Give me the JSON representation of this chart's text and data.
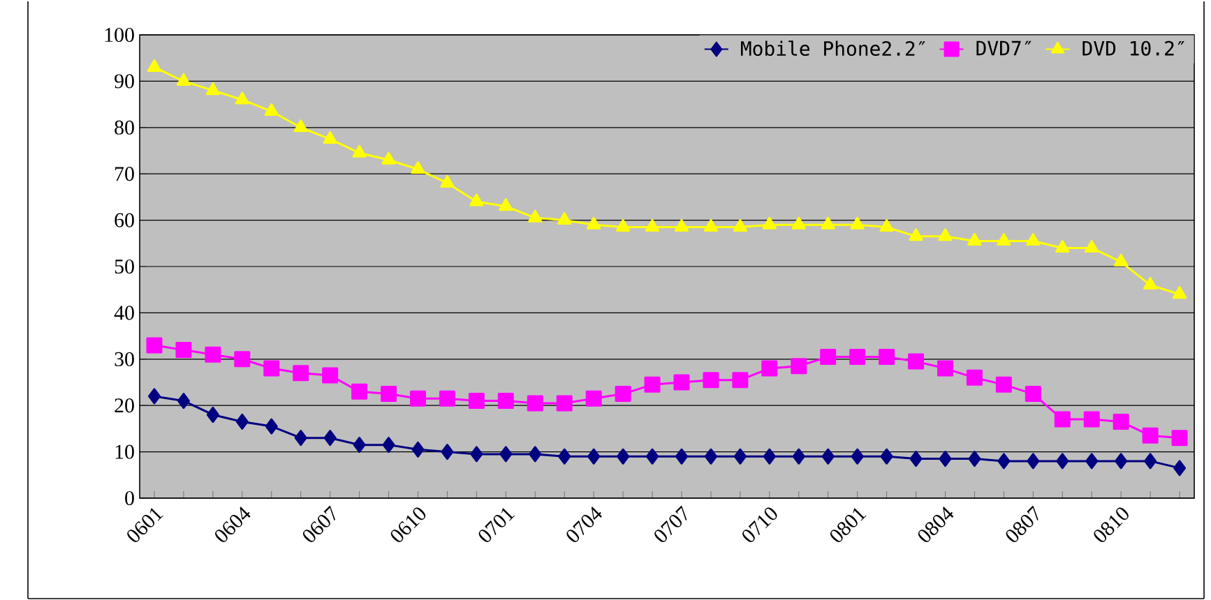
{
  "chart_data": {
    "type": "line",
    "categories": [
      "0601",
      null,
      null,
      "0604",
      null,
      null,
      "0607",
      null,
      null,
      "0610",
      null,
      null,
      "0701",
      null,
      null,
      "0704",
      null,
      null,
      "0707",
      null,
      null,
      "0710",
      null,
      null,
      "0801",
      null,
      null,
      "0804",
      null,
      null,
      "0807",
      null,
      null,
      "0810",
      null,
      null
    ],
    "series": [
      {
        "name": "Mobile Phone2.2″",
        "color": "#000080",
        "marker": "diamond",
        "values": [
          22,
          21,
          18,
          16.5,
          15.5,
          13,
          13,
          11.5,
          11.5,
          10.5,
          10,
          9.5,
          9.5,
          9.5,
          9,
          9,
          9,
          9,
          9,
          9,
          9,
          9,
          9,
          9,
          9,
          9,
          8.5,
          8.5,
          8.5,
          8,
          8,
          8,
          8,
          8,
          8,
          6.5
        ]
      },
      {
        "name": "DVD7″",
        "color": "#ff00ff",
        "marker": "square",
        "values": [
          33,
          32,
          31,
          30,
          28,
          27,
          26.5,
          23,
          22.5,
          21.5,
          21.5,
          21,
          21,
          20.5,
          20.5,
          21.5,
          22.5,
          24.5,
          25,
          25.5,
          25.5,
          28,
          28.5,
          30.5,
          30.5,
          30.5,
          29.5,
          28,
          26,
          24.5,
          22.5,
          17,
          17,
          16.5,
          13.5,
          13
        ]
      },
      {
        "name": "DVD 10.2″",
        "color": "#ffff00",
        "marker": "triangle",
        "values": [
          93,
          90,
          88,
          86,
          83.5,
          80,
          77.5,
          74.5,
          73,
          71,
          68,
          64,
          63,
          60.5,
          60,
          59,
          58.5,
          58.5,
          58.5,
          58.5,
          58.5,
          59,
          59,
          59,
          59,
          58.5,
          56.5,
          56.5,
          55.5,
          55.5,
          55.5,
          54,
          54,
          51,
          46,
          44
        ]
      }
    ],
    "ylim": [
      0,
      100
    ],
    "yticks": [
      0,
      10,
      20,
      30,
      40,
      50,
      60,
      70,
      80,
      90,
      100
    ],
    "grid": "y",
    "legend": "top"
  }
}
